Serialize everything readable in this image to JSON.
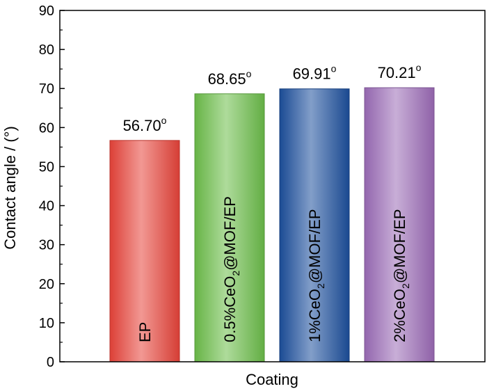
{
  "chart_data": {
    "type": "bar",
    "title": "",
    "xlabel": "Coating",
    "ylabel": "Contact angle / (°)",
    "ylim": [
      0,
      90
    ],
    "yticks": [
      0,
      10,
      20,
      30,
      40,
      50,
      60,
      70,
      80,
      90
    ],
    "categories": [
      "EP",
      "0.5%CeO2@MOF/EP",
      "1%CeO2@MOF/EP",
      "2%CeO2@MOF/EP"
    ],
    "values": [
      56.7,
      68.65,
      69.91,
      70.21
    ],
    "value_labels": [
      "56.70°",
      "68.65°",
      "69.91°",
      "70.21°"
    ],
    "colors": [
      "#e8433a",
      "#6cbd4a",
      "#1c4f9c",
      "#9b6bb7"
    ],
    "grid": false,
    "legend": "none"
  }
}
